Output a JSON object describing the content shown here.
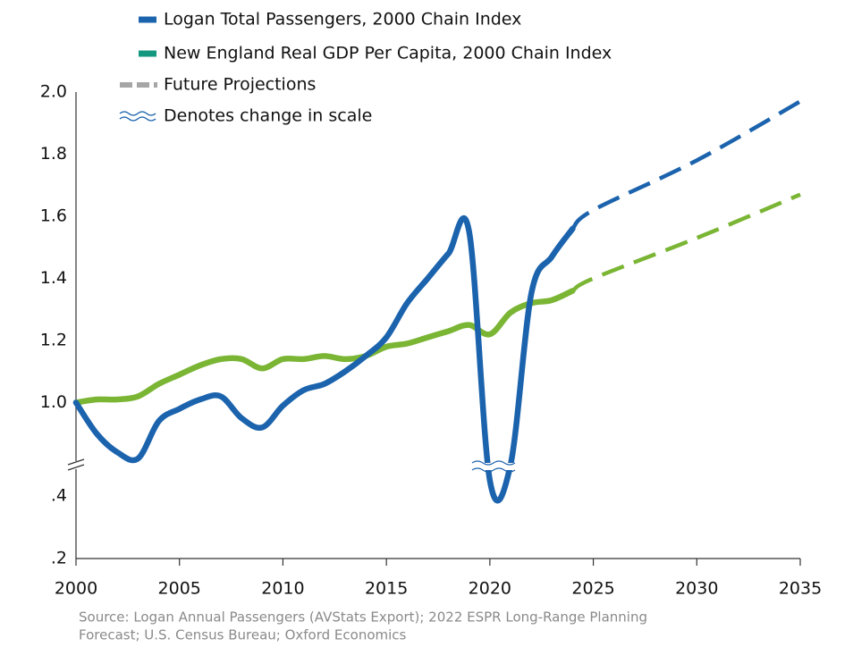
{
  "chart_data": {
    "type": "line",
    "x": [
      2000,
      2001,
      2002,
      2003,
      2004,
      2005,
      2006,
      2007,
      2008,
      2009,
      2010,
      2011,
      2012,
      2013,
      2014,
      2015,
      2016,
      2017,
      2018,
      2019,
      2020,
      2021,
      2022,
      2023,
      2024
    ],
    "series": [
      {
        "name": "Logan Total Passengers, 2000 Chain Index",
        "color": "#1b63ad",
        "values": [
          1.0,
          0.9,
          0.84,
          0.82,
          0.94,
          0.98,
          1.01,
          1.02,
          0.95,
          0.92,
          0.99,
          1.04,
          1.06,
          1.1,
          1.15,
          1.21,
          1.32,
          1.4,
          1.48,
          1.55,
          0.45,
          0.6,
          1.35,
          1.47,
          1.56
        ],
        "projection": {
          "x": [
            2024,
            2025,
            2030,
            2035
          ],
          "values": [
            1.56,
            1.62,
            1.78,
            1.97
          ]
        }
      },
      {
        "name": "New England Real GDP Per Capita, 2000 Chain Index",
        "color": "#7ab534",
        "legend_color": "#14987f",
        "values": [
          1.0,
          1.01,
          1.01,
          1.02,
          1.06,
          1.09,
          1.12,
          1.14,
          1.14,
          1.11,
          1.14,
          1.14,
          1.15,
          1.14,
          1.15,
          1.18,
          1.19,
          1.21,
          1.23,
          1.25,
          1.22,
          1.29,
          1.32,
          1.33,
          1.36
        ],
        "projection": {
          "x": [
            2024,
            2025,
            2030,
            2035
          ],
          "values": [
            1.36,
            1.4,
            1.53,
            1.67
          ]
        }
      }
    ],
    "legend_extra": [
      "Future Projections",
      "Denotes change in scale"
    ],
    "xlim": [
      2000,
      2035
    ],
    "xticks": [
      2000,
      2005,
      2010,
      2015,
      2020,
      2025,
      2030,
      2035
    ],
    "ylim": [
      0.2,
      2.0
    ],
    "ybreak": [
      0.5,
      0.8
    ],
    "yticks": [
      {
        "value": 2,
        "label": "2.0"
      },
      1.8,
      1.6,
      1.4,
      1.2,
      {
        "value": 1,
        "label": "1.0"
      },
      {
        "value": 0.4,
        "label": ".4"
      },
      {
        "value": 0.2,
        "label": ".2"
      }
    ],
    "source": [
      "Source: Logan Annual Passengers (AVStats Export); 2022 ESPR Long-Range Planning",
      "Forecast; U.S. Census Bureau; Oxford Economics"
    ]
  }
}
